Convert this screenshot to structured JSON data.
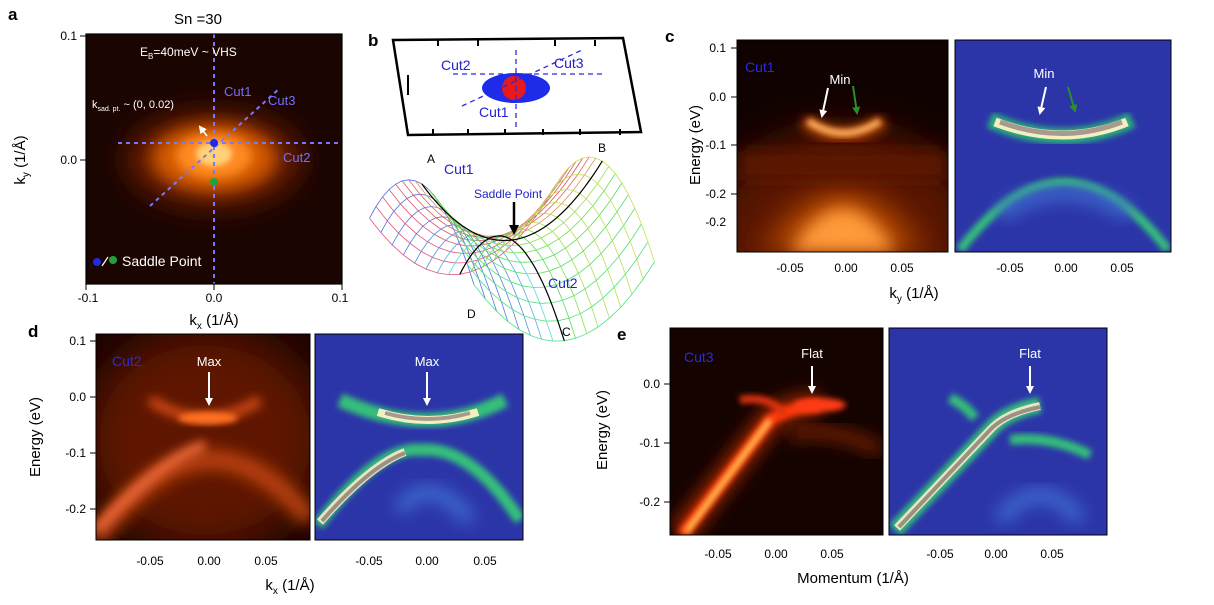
{
  "figure": {
    "panel_labels": [
      "a",
      "b",
      "c",
      "d",
      "e"
    ],
    "a": {
      "title": "Sn =30",
      "energy_label": "E",
      "energy_sub": "B",
      "energy_rest": "=40meV ~ VHS",
      "ksad_k": "k",
      "ksad_sub": "sad. pt.",
      "ksad_value": " ~ (0, 0.02)",
      "cut1": "Cut1",
      "cut2": "Cut2",
      "cut3": "Cut3",
      "legend": "Saddle Point",
      "xlabel_k": "k",
      "xlabel_sub": "x",
      "xlabel_unit": " (1/Å)",
      "ylabel_k": "k",
      "ylabel_sub": "y",
      "ylabel_unit": " (1/Å)",
      "xticks": [
        "-0.1",
        "0.0",
        "0.1"
      ],
      "yticks": [
        "0.1",
        "0.0"
      ]
    },
    "b": {
      "cut1": "Cut1",
      "cut2": "Cut2",
      "cut3": "Cut3",
      "corner_a": "A",
      "corner_b": "B",
      "corner_c": "C",
      "corner_d": "D",
      "surface_cut1": "Cut1",
      "surface_cut2": "Cut2",
      "saddle_point": "Saddle Point"
    },
    "c": {
      "cut": "Cut1",
      "min_left": "Min",
      "min_right": "Min",
      "ylabel": "Energy (eV)",
      "yticks": [
        "0.1",
        "0.0",
        "-0.1",
        "-0.2"
      ],
      "xticks_left": [
        "-0.05",
        "0.00",
        "0.05"
      ],
      "xticks_right": [
        "-0.05",
        "0.00",
        "0.05"
      ],
      "xlabel_k": "k",
      "xlabel_sub": "y",
      "xlabel_unit": " (1/Å)"
    },
    "d": {
      "cut": "Cut2",
      "max_left": "Max",
      "max_right": "Max",
      "ylabel": "Energy (eV)",
      "yticks": [
        "0.1",
        "0.0",
        "-0.1",
        "-0.2"
      ],
      "xticks_left": [
        "-0.05",
        "0.00",
        "0.05"
      ],
      "xticks_right": [
        "-0.05",
        "0.00",
        "0.05"
      ],
      "xlabel_k": "k",
      "xlabel_sub": "x",
      "xlabel_unit": " (1/Å)"
    },
    "e": {
      "cut": "Cut3",
      "flat_left": "Flat",
      "flat_right": "Flat",
      "ylabel": "Energy (eV)",
      "yticks": [
        "0.0",
        "-0.1",
        "-0.2"
      ],
      "xticks_left": [
        "-0.05",
        "0.00",
        "0.05"
      ],
      "xticks_right": [
        "-0.05",
        "0.00",
        "0.05"
      ],
      "xlabel": "Momentum (1/Å)"
    }
  },
  "colors": {
    "arpes_bg": "#0f0200",
    "arpes_hot": "#ff3c00",
    "arpes_bright": "#ffe27a",
    "curv_bg": "#2c35a8",
    "curv_band": "#3fc87a",
    "curv_core": "#cfc7bd",
    "cut_line": "#6a6aff",
    "saddle_blue": "#1f2be0",
    "saddle_green": "#22a33a",
    "cut_label": "#2222cc",
    "arrow_green": "#2b8f2b"
  }
}
